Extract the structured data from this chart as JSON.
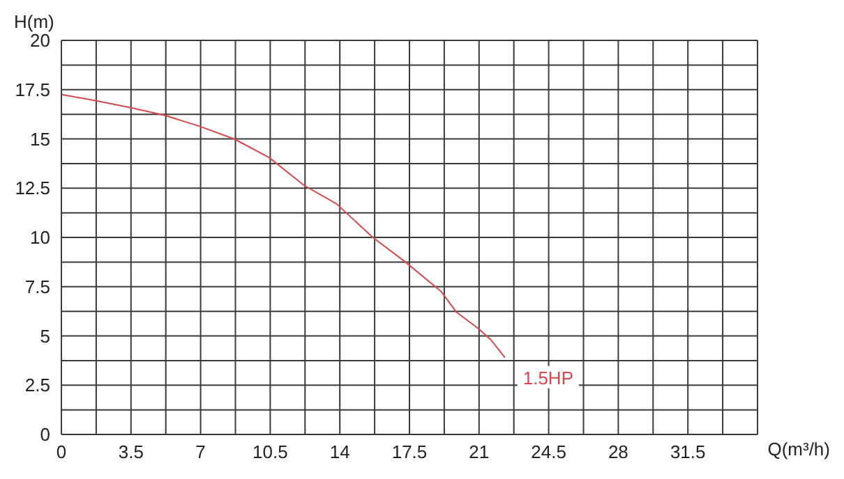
{
  "chart_data": {
    "type": "line",
    "xlabel": "Q(m³/h)",
    "ylabel": "H(m)",
    "series": [
      {
        "name": "1.5HP",
        "color": "#d8474c",
        "x": [
          0,
          1.66,
          3.42,
          5.18,
          6.93,
          8.68,
          10.44,
          12.19,
          13.84,
          15.66,
          17.3,
          19.1,
          19.87,
          20.97,
          21.6,
          22.3
        ],
        "values": [
          17.25,
          16.95,
          16.6,
          16.2,
          15.65,
          15.0,
          14.06,
          12.65,
          11.7,
          10.0,
          8.75,
          7.25,
          6.2,
          5.37,
          4.8,
          3.9
        ]
      }
    ],
    "xlim": [
      0,
      35
    ],
    "xticks": [
      0,
      {
        "value": 1.75,
        "label": null
      },
      3.5,
      {
        "value": 5.25,
        "label": null
      },
      7,
      {
        "value": 8.75,
        "label": null
      },
      10.5,
      {
        "value": 12.25,
        "label": null
      },
      14,
      {
        "value": 15.75,
        "label": null
      },
      17.5,
      {
        "value": 19.25,
        "label": null
      },
      21,
      {
        "value": 22.75,
        "label": null
      },
      24.5,
      {
        "value": 26.25,
        "label": null
      },
      28,
      {
        "value": 29.75,
        "label": null
      },
      31.5,
      {
        "value": 33.25,
        "label": null
      },
      {
        "value": 35,
        "label": null
      }
    ],
    "ylim": [
      0,
      20
    ],
    "yticks": [
      0,
      {
        "value": 1.25,
        "label": null
      },
      2.5,
      {
        "value": 3.75,
        "label": null
      },
      5,
      {
        "value": 6.25,
        "label": null
      },
      7.5,
      {
        "value": 8.75,
        "label": null
      },
      10,
      {
        "value": 11.25,
        "label": null
      },
      12.5,
      {
        "value": 13.75,
        "label": null
      },
      15,
      {
        "value": 16.25,
        "label": null
      },
      17.5,
      {
        "value": 18.75,
        "label": null
      },
      20
    ],
    "grid": true,
    "marker": "none",
    "line_style": "solid"
  }
}
